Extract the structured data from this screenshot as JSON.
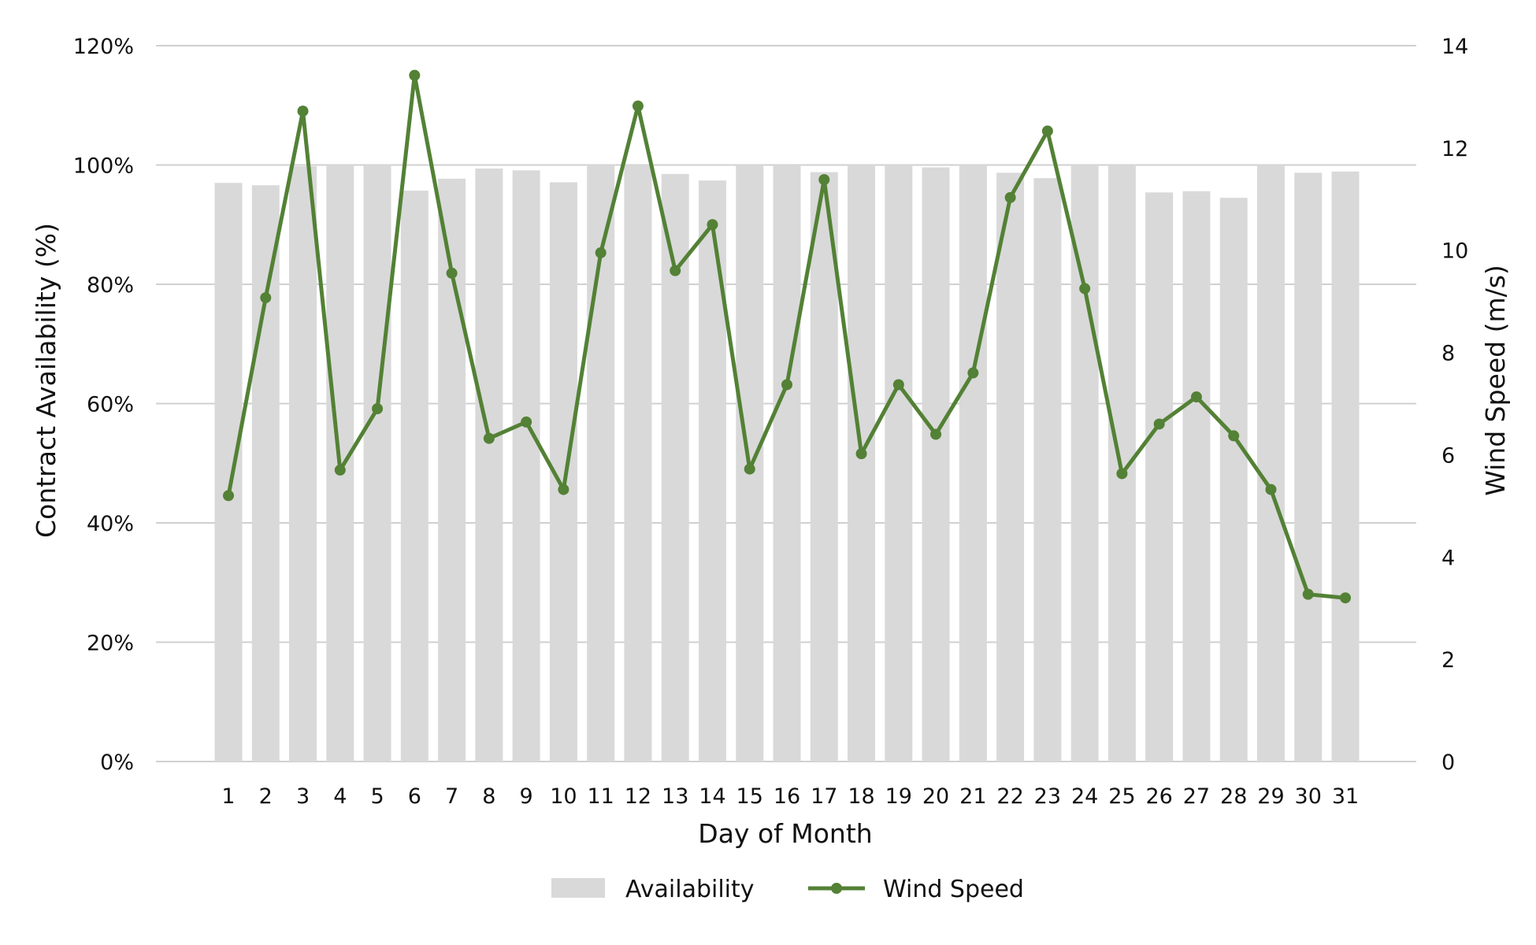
{
  "chart_data": {
    "type": "bar",
    "xlabel": "Day of Month",
    "ylabel_left": "Contract Availability (%)",
    "ylabel_right": "Wind Speed (m/s)",
    "categories": [
      "1",
      "2",
      "3",
      "4",
      "5",
      "6",
      "7",
      "8",
      "9",
      "10",
      "11",
      "12",
      "13",
      "14",
      "15",
      "16",
      "17",
      "18",
      "19",
      "20",
      "21",
      "22",
      "23",
      "24",
      "25",
      "26",
      "27",
      "28",
      "29",
      "30",
      "31"
    ],
    "ylim_left": [
      0,
      120
    ],
    "ylim_right": [
      0,
      14
    ],
    "left_ticks": [
      "0%",
      "20%",
      "40%",
      "60%",
      "80%",
      "100%",
      "120%"
    ],
    "left_tick_values": [
      0,
      20,
      40,
      60,
      80,
      100,
      120
    ],
    "right_ticks": [
      "0",
      "2",
      "4",
      "6",
      "8",
      "10",
      "12",
      "14"
    ],
    "right_tick_values": [
      0,
      2,
      4,
      6,
      8,
      10,
      12,
      14
    ],
    "grid": true,
    "legend_position": "bottom",
    "series": [
      {
        "name": "Availability",
        "type": "bar",
        "axis": "left",
        "color": "#d9d9d9",
        "values": [
          97.0,
          96.6,
          99.8,
          100.0,
          100.0,
          95.7,
          97.7,
          99.4,
          99.1,
          97.1,
          100.0,
          100.0,
          98.5,
          97.4,
          100.0,
          100.0,
          98.8,
          100.0,
          100.0,
          99.6,
          100.0,
          98.7,
          97.8,
          100.0,
          100.0,
          95.4,
          95.6,
          94.5,
          100.0,
          98.7,
          98.9
        ]
      },
      {
        "name": "Wind Speed",
        "type": "line",
        "axis": "right",
        "color": "#538135",
        "values": [
          5.2,
          9.07,
          12.72,
          5.7,
          6.9,
          13.42,
          9.55,
          6.32,
          6.64,
          5.32,
          9.95,
          12.82,
          9.6,
          10.5,
          5.72,
          7.37,
          11.38,
          6.02,
          7.37,
          6.4,
          7.6,
          11.03,
          12.33,
          9.25,
          5.63,
          6.6,
          7.13,
          6.37,
          5.32,
          3.27,
          3.2
        ]
      }
    ]
  }
}
